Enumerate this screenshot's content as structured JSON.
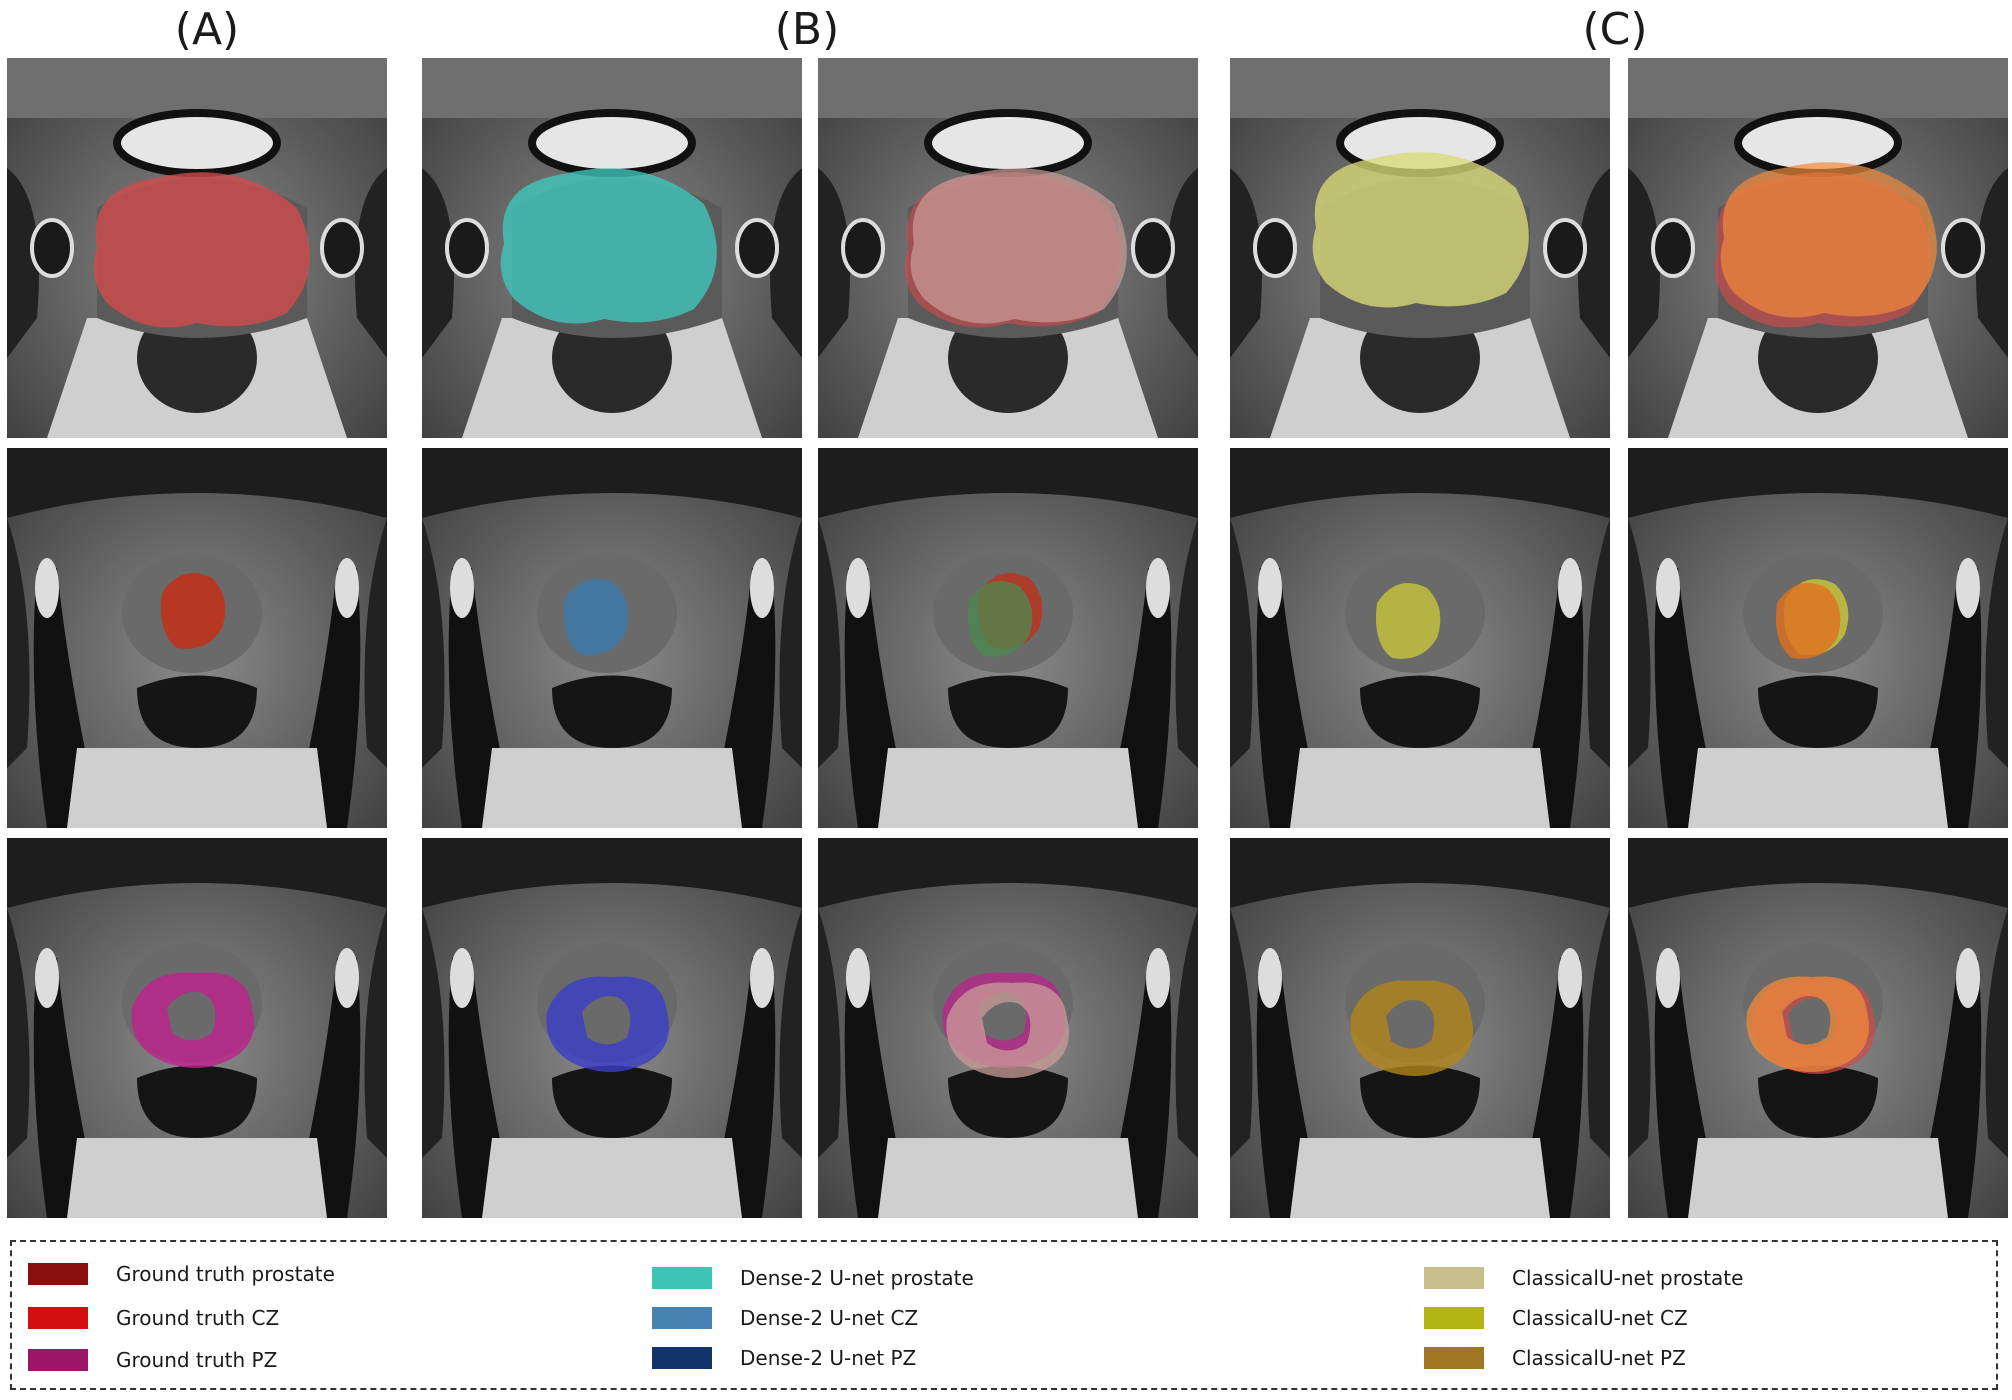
{
  "columns": [
    "(A)",
    "(B)",
    "(C)"
  ],
  "overlay_colors": {
    "gt_prostate": "#d24a4a",
    "gt_cz": "#cc2a10",
    "gt_pz": "#c0208e",
    "dense_prostate": "#3ec8bc",
    "dense_cz": "#3a7bb0",
    "dense_pz": "#3a3ec8",
    "mix_b_prostate": "#c99c98",
    "mix_b_cz": "#4b8a4f",
    "classical_prostate": "#d8da74",
    "classical_cz": "#c9c93a",
    "classical_pz": "#b08418",
    "mix_c_prostate": "#f08a3a",
    "mix_c_cz": "#e0701f"
  },
  "legend": [
    {
      "label": "Ground truth prostate",
      "color": "#8b0f0f"
    },
    {
      "label": "Ground truth CZ",
      "color": "#d40f0f"
    },
    {
      "label": "Ground truth PZ",
      "color": "#9c1466"
    },
    {
      "label": "Dense-2 U-net prostate",
      "color": "#3cc4b4"
    },
    {
      "label": "Dense-2 U-net CZ",
      "color": "#4682b4"
    },
    {
      "label": "Dense-2 U-net PZ",
      "color": "#14346e"
    },
    {
      "label": "ClassicalU-net prostate",
      "color": "#c8c08c"
    },
    {
      "label": "ClassicalU-net CZ",
      "color": "#b4b414"
    },
    {
      "label": "ClassicalU-net PZ",
      "color": "#a07823"
    }
  ]
}
